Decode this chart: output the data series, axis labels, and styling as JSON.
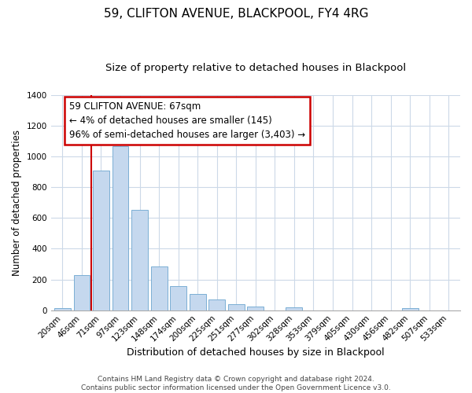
{
  "title": "59, CLIFTON AVENUE, BLACKPOOL, FY4 4RG",
  "subtitle": "Size of property relative to detached houses in Blackpool",
  "xlabel": "Distribution of detached houses by size in Blackpool",
  "ylabel": "Number of detached properties",
  "bar_labels": [
    "20sqm",
    "46sqm",
    "71sqm",
    "97sqm",
    "123sqm",
    "148sqm",
    "174sqm",
    "200sqm",
    "225sqm",
    "251sqm",
    "277sqm",
    "302sqm",
    "328sqm",
    "353sqm",
    "379sqm",
    "405sqm",
    "430sqm",
    "456sqm",
    "482sqm",
    "507sqm",
    "533sqm"
  ],
  "bar_values": [
    15,
    228,
    910,
    1065,
    650,
    285,
    158,
    108,
    68,
    40,
    22,
    0,
    18,
    0,
    0,
    0,
    0,
    0,
    12,
    0,
    0
  ],
  "bar_color": "#c5d8ee",
  "bar_edge_color": "#7bafd4",
  "marker_color": "#cc0000",
  "ylim": [
    0,
    1400
  ],
  "yticks": [
    0,
    200,
    400,
    600,
    800,
    1000,
    1200,
    1400
  ],
  "annotation_title": "59 CLIFTON AVENUE: 67sqm",
  "annotation_line1": "← 4% of detached houses are smaller (145)",
  "annotation_line2": "96% of semi-detached houses are larger (3,403) →",
  "annotation_box_color": "#ffffff",
  "annotation_box_edge": "#cc0000",
  "footer_line1": "Contains HM Land Registry data © Crown copyright and database right 2024.",
  "footer_line2": "Contains public sector information licensed under the Open Government Licence v3.0.",
  "background_color": "#ffffff",
  "grid_color": "#ccd9e8",
  "title_fontsize": 11,
  "subtitle_fontsize": 9.5,
  "xlabel_fontsize": 9,
  "ylabel_fontsize": 8.5,
  "tick_fontsize": 7.5,
  "footer_fontsize": 6.5,
  "ann_fontsize": 8.5
}
